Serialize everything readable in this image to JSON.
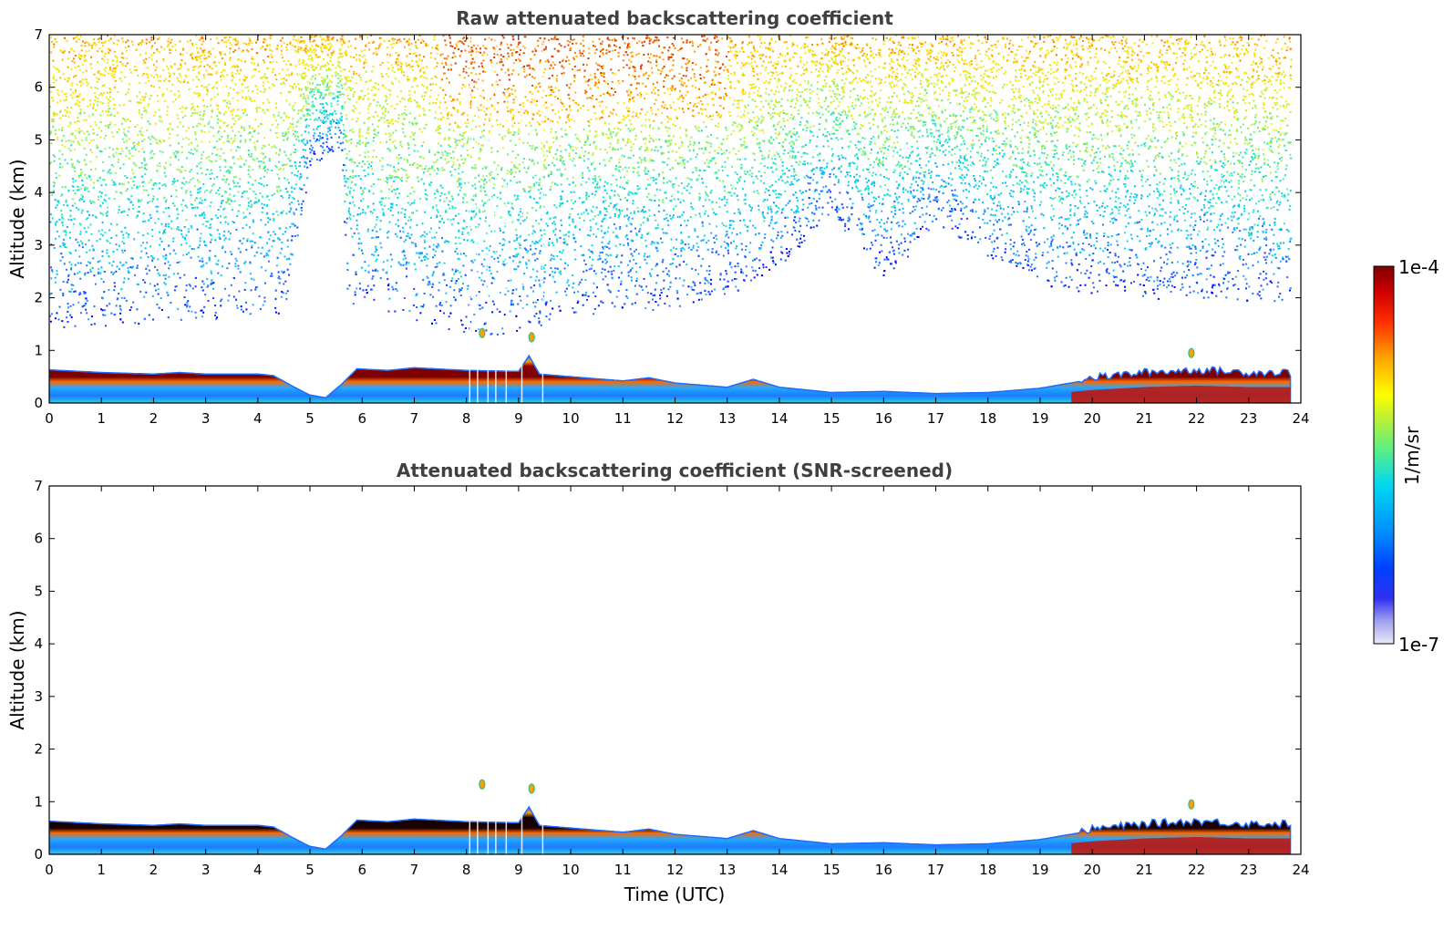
{
  "chart_data": [
    {
      "type": "heatmap",
      "title": "Raw attenuated backscattering coefficient",
      "xlabel": "",
      "ylabel": "Altitude (km)",
      "xlim": [
        0,
        24
      ],
      "ylim": [
        0,
        7
      ],
      "xticks": [
        "0",
        "1",
        "2",
        "3",
        "4",
        "5",
        "6",
        "7",
        "8",
        "9",
        "10",
        "11",
        "12",
        "13",
        "14",
        "15",
        "16",
        "17",
        "18",
        "19",
        "20",
        "21",
        "22",
        "23",
        "24"
      ],
      "yticks": [
        "0",
        "1",
        "2",
        "3",
        "4",
        "5",
        "6",
        "7"
      ],
      "layer_top_km": [
        [
          0,
          0.63
        ],
        [
          1,
          0.58
        ],
        [
          2,
          0.55
        ],
        [
          2.5,
          0.58
        ],
        [
          3,
          0.55
        ],
        [
          4,
          0.55
        ],
        [
          4.3,
          0.52
        ],
        [
          4.7,
          0.3
        ],
        [
          5,
          0.15
        ],
        [
          5.3,
          0.1
        ],
        [
          5.6,
          0.35
        ],
        [
          5.9,
          0.65
        ],
        [
          6.5,
          0.62
        ],
        [
          7,
          0.67
        ],
        [
          8,
          0.62
        ],
        [
          9,
          0.6
        ],
        [
          9.2,
          0.9
        ],
        [
          9.4,
          0.55
        ],
        [
          10,
          0.5
        ],
        [
          11,
          0.42
        ],
        [
          11.5,
          0.48
        ],
        [
          12,
          0.38
        ],
        [
          13,
          0.3
        ],
        [
          13.5,
          0.45
        ],
        [
          14,
          0.3
        ],
        [
          15,
          0.2
        ],
        [
          16,
          0.22
        ],
        [
          17,
          0.18
        ],
        [
          18,
          0.2
        ],
        [
          19,
          0.28
        ],
        [
          20,
          0.45
        ],
        [
          21,
          0.55
        ],
        [
          22,
          0.6
        ],
        [
          23,
          0.55
        ],
        [
          23.8,
          0.55
        ]
      ],
      "noise_floor_km": [
        [
          0,
          1.4
        ],
        [
          4.5,
          1.7
        ],
        [
          5,
          4.5
        ],
        [
          5.6,
          4.8
        ],
        [
          5.7,
          1.9
        ],
        [
          7,
          1.6
        ],
        [
          8,
          1.3
        ],
        [
          9,
          1.3
        ],
        [
          10,
          1.6
        ],
        [
          13,
          1.9
        ],
        [
          14,
          2.6
        ],
        [
          15,
          3.6
        ],
        [
          16,
          2.3
        ],
        [
          17,
          3.4
        ],
        [
          19,
          2.2
        ],
        [
          21,
          2.0
        ],
        [
          23.8,
          1.9
        ]
      ],
      "data_end_hour": 23.8
    },
    {
      "type": "heatmap",
      "title": "Attenuated backscattering coefficient (SNR-screened)",
      "xlabel": "Time (UTC)",
      "ylabel": "Altitude (km)",
      "xlim": [
        0,
        24
      ],
      "ylim": [
        0,
        7
      ],
      "xticks": [
        "0",
        "1",
        "2",
        "3",
        "4",
        "5",
        "6",
        "7",
        "8",
        "9",
        "10",
        "11",
        "12",
        "13",
        "14",
        "15",
        "16",
        "17",
        "18",
        "19",
        "20",
        "21",
        "22",
        "23",
        "24"
      ],
      "yticks": [
        "0",
        "1",
        "2",
        "3",
        "4",
        "5",
        "6",
        "7"
      ],
      "features": [
        {
          "hour": 8.3,
          "alt_km": 1.33
        },
        {
          "hour": 9.25,
          "alt_km": 1.25
        },
        {
          "hour": 21.9,
          "alt_km": 0.95
        }
      ]
    }
  ],
  "colorbar": {
    "label": "1/m/sr",
    "max_label": "1e-4",
    "min_label": "1e-7",
    "colors": [
      "#e8e8f8",
      "#c8c8f4",
      "#a0a0ee",
      "#7070ea",
      "#3030f0",
      "#0000ff",
      "#0040ff",
      "#0080ff",
      "#00b0ff",
      "#00d8f0",
      "#20e8c0",
      "#60f080",
      "#a0f040",
      "#d8f020",
      "#ffff00",
      "#ffd000",
      "#ffa000",
      "#ff6000",
      "#ff2000",
      "#e00000",
      "#b00000",
      "#800000"
    ]
  }
}
